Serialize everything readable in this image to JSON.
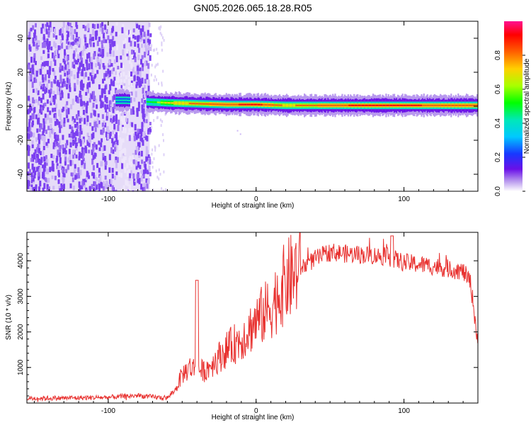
{
  "figure": {
    "title": "GN05.2026.065.18.28.R05"
  },
  "chart_data": [
    {
      "type": "heatmap",
      "name": "spectrogram",
      "xlabel": "Height of straight line (km)",
      "ylabel": "Frequency (Hz)",
      "xlim": [
        -155,
        150
      ],
      "ylim": [
        -50,
        50
      ],
      "xticks": [
        -100,
        0,
        100
      ],
      "yticks": [
        -40,
        -20,
        0,
        20,
        40
      ],
      "noise_region_x": [
        -155,
        -72
      ],
      "signal_band": [
        {
          "x": -95,
          "freq": 3.5,
          "amp": 0.45
        },
        {
          "x": -88,
          "freq": 3.5,
          "amp": 0.45
        },
        {
          "x": -72,
          "freq": 2.5,
          "amp": 0.55
        },
        {
          "x": -60,
          "freq": 2.0,
          "amp": 0.75
        },
        {
          "x": -40,
          "freq": 1.5,
          "amp": 0.85
        },
        {
          "x": -20,
          "freq": 1.0,
          "amp": 0.9
        },
        {
          "x": 0,
          "freq": 1.0,
          "amp": 0.95
        },
        {
          "x": 20,
          "freq": 0.5,
          "amp": 0.8
        },
        {
          "x": 50,
          "freq": 0.5,
          "amp": 0.9
        },
        {
          "x": 80,
          "freq": 0.5,
          "amp": 0.95
        },
        {
          "x": 100,
          "freq": 0.5,
          "amp": 0.95
        },
        {
          "x": 120,
          "freq": 0.5,
          "amp": 0.9
        },
        {
          "x": 150,
          "freq": 0.5,
          "amp": 0.9
        }
      ],
      "colorbar": {
        "label": "Normalized spectral amplitude",
        "range": [
          0,
          1
        ],
        "ticks": [
          0.0,
          0.2,
          0.4,
          0.6,
          0.8
        ]
      }
    },
    {
      "type": "line",
      "name": "snr",
      "xlabel": "Height of straight line (km)",
      "ylabel": "SNR (10 * v/v)",
      "xlim": [
        -155,
        150
      ],
      "ylim": [
        0,
        4800
      ],
      "xticks": [
        -100,
        0,
        100
      ],
      "yticks": [
        1000,
        2000,
        3000,
        4000
      ],
      "color": "#e8312f",
      "x": [
        -155,
        -130,
        -100,
        -80,
        -70,
        -60,
        -55,
        -50,
        -45,
        -40,
        -35,
        -30,
        -20,
        -10,
        0,
        10,
        20,
        30,
        40,
        50,
        60,
        80,
        90,
        100,
        120,
        140,
        145,
        150
      ],
      "y": [
        130,
        140,
        160,
        210,
        170,
        140,
        350,
        800,
        1000,
        950,
        900,
        1100,
        1500,
        1800,
        2300,
        2700,
        3400,
        3800,
        4050,
        4250,
        4200,
        4150,
        4100,
        3950,
        3850,
        3700,
        3400,
        1700
      ]
    }
  ]
}
